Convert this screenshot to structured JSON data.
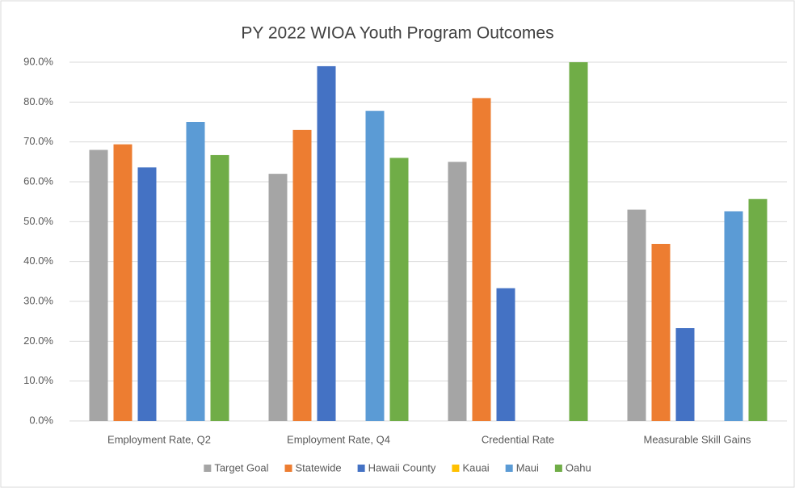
{
  "chart_data": {
    "type": "bar",
    "title": "PY 2022 WIOA Youth Program Outcomes",
    "categories": [
      "Employment Rate, Q2",
      "Employment Rate, Q4",
      "Credential Rate",
      "Measurable Skill Gains"
    ],
    "series": [
      {
        "name": "Target Goal",
        "color": "#a5a5a5",
        "values": [
          68,
          62,
          65,
          53
        ]
      },
      {
        "name": "Statewide",
        "color": "#ed7d31",
        "values": [
          69.4,
          73,
          81,
          44.4
        ]
      },
      {
        "name": "Hawaii County",
        "color": "#4472c4",
        "values": [
          63.6,
          89,
          33.3,
          23.3
        ]
      },
      {
        "name": "Kauai",
        "color": "#ffc000",
        "values": [
          null,
          null,
          null,
          null
        ]
      },
      {
        "name": "Maui",
        "color": "#5b9bd5",
        "values": [
          75,
          77.8,
          null,
          52.6
        ]
      },
      {
        "name": "Oahu",
        "color": "#70ad47",
        "values": [
          66.7,
          66,
          90,
          55.7
        ]
      }
    ],
    "ylim": [
      0,
      90
    ],
    "yticks": [
      {
        "value": 0,
        "label": "0.0%"
      },
      {
        "value": 10,
        "label": "10.0%"
      },
      {
        "value": 20,
        "label": "20.0%"
      },
      {
        "value": 30,
        "label": "30.0%"
      },
      {
        "value": 40,
        "label": "40.0%"
      },
      {
        "value": 50,
        "label": "50.0%"
      },
      {
        "value": 60,
        "label": "60.0%"
      },
      {
        "value": 70,
        "label": "70.0%"
      },
      {
        "value": 80,
        "label": "80.0%"
      },
      {
        "value": 90,
        "label": "90.0%"
      }
    ],
    "grid": true,
    "legend": "bottom"
  }
}
